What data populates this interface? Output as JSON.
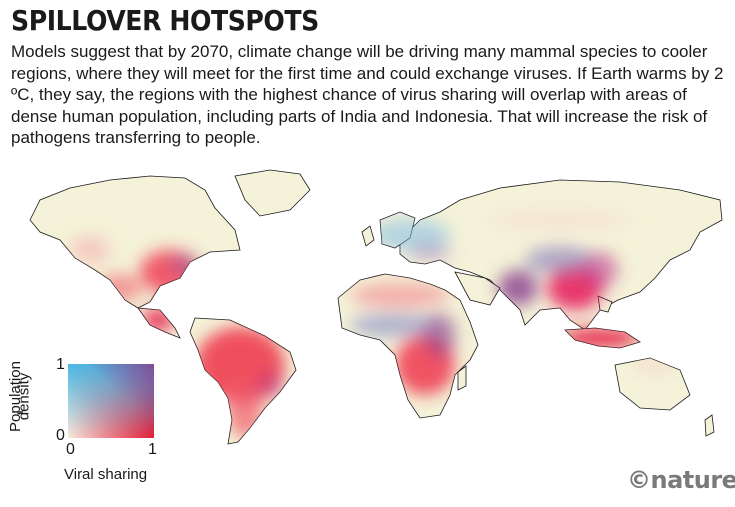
{
  "title": "SPILLOVER HOTSPOTS",
  "description": "Models suggest that by 2070, climate change will be driving many mammal species to cooler regions, where they will meet for the first time and could exchange viruses. If Earth warms by 2 ºC, they say, the regions with the highest chance of virus sharing will overlap with areas of dense human population, including parts of India and Indonesia. That will increase the risk of pathogens transferring to people.",
  "legend": {
    "y_label": "Population density",
    "y_label_line1": "Population",
    "y_label_line2": "density",
    "x_label": "Viral sharing",
    "y_tick_max": "1",
    "y_tick_min": "0",
    "x_tick_min": "0",
    "x_tick_max": "1",
    "colors": {
      "low_low": "#fbe9dc",
      "high_viral": "#f2182c",
      "high_population": "#3cc8f0",
      "high_both": "#8a3f8f"
    }
  },
  "credit": "©nature",
  "colors": {
    "land_base": "#f4f2d8",
    "land_edge": "#1a1a1a",
    "ocean": "#ffffff"
  }
}
